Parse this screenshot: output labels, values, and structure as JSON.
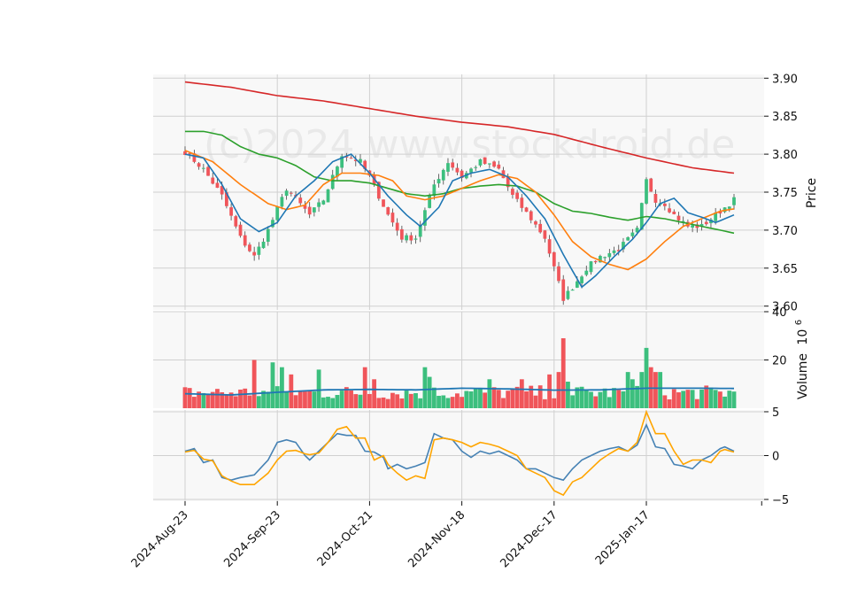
{
  "chart_data": {
    "type": "candlestick",
    "watermark": "(c)2024 www.stockdroid.de",
    "x_tick_labels": [
      "2024-Aug-23",
      "2024-Sep-23",
      "2024-Oct-21",
      "2024-Nov-18",
      "2024-Dec-17",
      "2025-Jan-17"
    ],
    "x_tick_index": [
      0,
      20,
      40,
      60,
      80,
      100
    ],
    "n_bars": 120,
    "colors": {
      "up": "#3cbf7e",
      "down": "#f0555a",
      "bg": "#f8f8f8",
      "grid": "#d0d0d0",
      "ma_fast": "#1f77b4",
      "ma_mid": "#ff7f0e",
      "ma_slow": "#2ca02c",
      "ma_long": "#d62728",
      "vol_ma": "#1f77b4",
      "osc_main": "#4682b4",
      "osc_signal": "#ffa500"
    },
    "price_panel": {
      "ylabel": "Price",
      "ylim": [
        3.595,
        3.905
      ],
      "y_ticks": [
        "3.60",
        "3.65",
        "3.70",
        "3.75",
        "3.80",
        "3.85",
        "3.90"
      ],
      "y_tick_values": [
        3.6,
        3.65,
        3.7,
        3.75,
        3.8,
        3.85,
        3.9
      ],
      "close_anchors": [
        [
          0,
          3.803
        ],
        [
          4,
          3.78
        ],
        [
          8,
          3.745
        ],
        [
          12,
          3.69
        ],
        [
          15,
          3.665
        ],
        [
          18,
          3.7
        ],
        [
          22,
          3.755
        ],
        [
          27,
          3.72
        ],
        [
          30,
          3.74
        ],
        [
          34,
          3.8
        ],
        [
          38,
          3.79
        ],
        [
          40,
          3.77
        ],
        [
          44,
          3.72
        ],
        [
          47,
          3.69
        ],
        [
          50,
          3.69
        ],
        [
          54,
          3.76
        ],
        [
          57,
          3.79
        ],
        [
          60,
          3.77
        ],
        [
          64,
          3.79
        ],
        [
          68,
          3.78
        ],
        [
          71,
          3.745
        ],
        [
          75,
          3.715
        ],
        [
          78,
          3.69
        ],
        [
          80,
          3.65
        ],
        [
          82,
          3.61
        ],
        [
          84,
          3.625
        ],
        [
          87,
          3.65
        ],
        [
          90,
          3.665
        ],
        [
          94,
          3.675
        ],
        [
          98,
          3.7
        ],
        [
          100,
          3.765
        ],
        [
          102,
          3.74
        ],
        [
          104,
          3.735
        ],
        [
          106,
          3.72
        ],
        [
          109,
          3.705
        ],
        [
          112,
          3.705
        ],
        [
          115,
          3.72
        ],
        [
          119,
          3.74
        ]
      ],
      "ma_fast_anchors": [
        [
          0,
          3.8
        ],
        [
          4,
          3.795
        ],
        [
          8,
          3.76
        ],
        [
          12,
          3.715
        ],
        [
          16,
          3.698
        ],
        [
          20,
          3.71
        ],
        [
          24,
          3.745
        ],
        [
          28,
          3.765
        ],
        [
          32,
          3.79
        ],
        [
          36,
          3.8
        ],
        [
          40,
          3.775
        ],
        [
          44,
          3.745
        ],
        [
          48,
          3.72
        ],
        [
          51,
          3.705
        ],
        [
          55,
          3.73
        ],
        [
          58,
          3.765
        ],
        [
          62,
          3.775
        ],
        [
          66,
          3.78
        ],
        [
          70,
          3.77
        ],
        [
          74,
          3.745
        ],
        [
          78,
          3.715
        ],
        [
          82,
          3.668
        ],
        [
          86,
          3.625
        ],
        [
          89,
          3.64
        ],
        [
          93,
          3.665
        ],
        [
          97,
          3.688
        ],
        [
          100,
          3.71
        ],
        [
          103,
          3.735
        ],
        [
          106,
          3.742
        ],
        [
          109,
          3.723
        ],
        [
          112,
          3.717
        ],
        [
          115,
          3.71
        ],
        [
          119,
          3.72
        ]
      ],
      "ma_mid_anchors": [
        [
          0,
          3.805
        ],
        [
          6,
          3.79
        ],
        [
          12,
          3.76
        ],
        [
          18,
          3.735
        ],
        [
          22,
          3.727
        ],
        [
          26,
          3.733
        ],
        [
          30,
          3.76
        ],
        [
          34,
          3.775
        ],
        [
          38,
          3.775
        ],
        [
          42,
          3.772
        ],
        [
          45,
          3.765
        ],
        [
          48,
          3.745
        ],
        [
          52,
          3.74
        ],
        [
          56,
          3.745
        ],
        [
          60,
          3.755
        ],
        [
          64,
          3.765
        ],
        [
          68,
          3.773
        ],
        [
          72,
          3.768
        ],
        [
          76,
          3.75
        ],
        [
          80,
          3.72
        ],
        [
          84,
          3.685
        ],
        [
          88,
          3.665
        ],
        [
          92,
          3.655
        ],
        [
          96,
          3.648
        ],
        [
          100,
          3.662
        ],
        [
          104,
          3.685
        ],
        [
          108,
          3.705
        ],
        [
          112,
          3.715
        ],
        [
          116,
          3.725
        ],
        [
          119,
          3.728
        ]
      ],
      "ma_slow_anchors": [
        [
          0,
          3.83
        ],
        [
          4,
          3.83
        ],
        [
          8,
          3.825
        ],
        [
          12,
          3.81
        ],
        [
          16,
          3.8
        ],
        [
          20,
          3.795
        ],
        [
          24,
          3.785
        ],
        [
          28,
          3.77
        ],
        [
          32,
          3.765
        ],
        [
          36,
          3.765
        ],
        [
          40,
          3.762
        ],
        [
          44,
          3.755
        ],
        [
          48,
          3.748
        ],
        [
          52,
          3.745
        ],
        [
          56,
          3.748
        ],
        [
          60,
          3.755
        ],
        [
          64,
          3.758
        ],
        [
          68,
          3.76
        ],
        [
          72,
          3.758
        ],
        [
          76,
          3.75
        ],
        [
          80,
          3.735
        ],
        [
          84,
          3.725
        ],
        [
          88,
          3.722
        ],
        [
          92,
          3.717
        ],
        [
          96,
          3.713
        ],
        [
          100,
          3.718
        ],
        [
          104,
          3.715
        ],
        [
          108,
          3.71
        ],
        [
          112,
          3.705
        ],
        [
          116,
          3.7
        ],
        [
          119,
          3.696
        ]
      ],
      "ma_long_anchors": [
        [
          0,
          3.895
        ],
        [
          10,
          3.888
        ],
        [
          20,
          3.877
        ],
        [
          30,
          3.87
        ],
        [
          40,
          3.86
        ],
        [
          50,
          3.85
        ],
        [
          60,
          3.842
        ],
        [
          70,
          3.836
        ],
        [
          80,
          3.826
        ],
        [
          90,
          3.81
        ],
        [
          100,
          3.795
        ],
        [
          110,
          3.782
        ],
        [
          119,
          3.775
        ]
      ]
    },
    "volume_panel": {
      "ylabel": "Volume",
      "ylabel_multiplier": "10",
      "ylabel_exponent": "6",
      "ylim": [
        0,
        40
      ],
      "y_ticks": [
        "20",
        "40"
      ],
      "y_tick_values": [
        20,
        40
      ],
      "spikes": [
        [
          15,
          20
        ],
        [
          19,
          19
        ],
        [
          21,
          17
        ],
        [
          23,
          14
        ],
        [
          29,
          16
        ],
        [
          39,
          17
        ],
        [
          41,
          12
        ],
        [
          52,
          17
        ],
        [
          53,
          13
        ],
        [
          66,
          12
        ],
        [
          73,
          12
        ],
        [
          79,
          14
        ],
        [
          81,
          15
        ],
        [
          82,
          29
        ],
        [
          83,
          11
        ],
        [
          96,
          15
        ],
        [
          97,
          12
        ],
        [
          99,
          15
        ],
        [
          100,
          25
        ],
        [
          101,
          17
        ],
        [
          102,
          15
        ],
        [
          103,
          15
        ]
      ],
      "ma_anchors": [
        [
          0,
          6
        ],
        [
          10,
          5.5
        ],
        [
          20,
          6.6
        ],
        [
          30,
          7.6
        ],
        [
          40,
          7.8
        ],
        [
          50,
          7.6
        ],
        [
          60,
          8.3
        ],
        [
          70,
          8
        ],
        [
          80,
          7.5
        ],
        [
          90,
          7.6
        ],
        [
          100,
          8.3
        ],
        [
          110,
          8.3
        ],
        [
          119,
          8.2
        ]
      ]
    },
    "oscillator_panel": {
      "ylim": [
        -5.2,
        5.2
      ],
      "y_ticks": [
        "5",
        "0",
        "−5"
      ],
      "y_tick_values": [
        5,
        0,
        -5
      ],
      "main_anchors": [
        [
          0,
          0.5
        ],
        [
          2,
          0.8
        ],
        [
          4,
          -0.8
        ],
        [
          6,
          -0.5
        ],
        [
          8,
          -2.5
        ],
        [
          10,
          -2.8
        ],
        [
          12,
          -2.5
        ],
        [
          15,
          -2.2
        ],
        [
          18,
          -0.5
        ],
        [
          20,
          1.5
        ],
        [
          22,
          1.8
        ],
        [
          24,
          1.5
        ],
        [
          26,
          0
        ],
        [
          27,
          -0.5
        ],
        [
          29,
          0.5
        ],
        [
          31,
          1.5
        ],
        [
          33,
          2.5
        ],
        [
          35,
          2.3
        ],
        [
          37,
          2.3
        ],
        [
          39,
          0.5
        ],
        [
          41,
          0.4
        ],
        [
          43,
          -0.2
        ],
        [
          44,
          -1.5
        ],
        [
          46,
          -1
        ],
        [
          48,
          -1.5
        ],
        [
          50,
          -1.2
        ],
        [
          52,
          -0.8
        ],
        [
          54,
          2.5
        ],
        [
          56,
          2
        ],
        [
          58,
          1.8
        ],
        [
          60,
          0.5
        ],
        [
          62,
          -0.2
        ],
        [
          64,
          0.5
        ],
        [
          66,
          0.2
        ],
        [
          68,
          0.5
        ],
        [
          70,
          0
        ],
        [
          72,
          -0.5
        ],
        [
          74,
          -1.5
        ],
        [
          76,
          -1.5
        ],
        [
          78,
          -2
        ],
        [
          80,
          -2.5
        ],
        [
          82,
          -2.8
        ],
        [
          84,
          -1.5
        ],
        [
          86,
          -0.5
        ],
        [
          88,
          0
        ],
        [
          90,
          0.5
        ],
        [
          92,
          0.8
        ],
        [
          94,
          1
        ],
        [
          96,
          0.5
        ],
        [
          98,
          1.2
        ],
        [
          100,
          3.5
        ],
        [
          102,
          1
        ],
        [
          104,
          0.8
        ],
        [
          106,
          -1
        ],
        [
          108,
          -1.2
        ],
        [
          110,
          -1.5
        ],
        [
          112,
          -0.5
        ],
        [
          114,
          0
        ],
        [
          116,
          0.8
        ],
        [
          117,
          1
        ],
        [
          119,
          0.5
        ]
      ],
      "signal_anchors": [
        [
          0,
          0.4
        ],
        [
          2,
          0.6
        ],
        [
          4,
          -0.4
        ],
        [
          6,
          -0.6
        ],
        [
          8,
          -2.3
        ],
        [
          10,
          -2.9
        ],
        [
          12,
          -3.3
        ],
        [
          15,
          -3.3
        ],
        [
          18,
          -2
        ],
        [
          20,
          -0.5
        ],
        [
          22,
          0.5
        ],
        [
          24,
          0.6
        ],
        [
          26,
          0.2
        ],
        [
          27,
          0.1
        ],
        [
          29,
          0.3
        ],
        [
          31,
          1.5
        ],
        [
          33,
          3
        ],
        [
          35,
          3.3
        ],
        [
          37,
          2
        ],
        [
          39,
          2
        ],
        [
          41,
          -0.5
        ],
        [
          43,
          0
        ],
        [
          44,
          -1
        ],
        [
          46,
          -2
        ],
        [
          48,
          -2.8
        ],
        [
          50,
          -2.3
        ],
        [
          52,
          -2.6
        ],
        [
          54,
          1.8
        ],
        [
          56,
          2
        ],
        [
          58,
          1.8
        ],
        [
          60,
          1.5
        ],
        [
          62,
          1
        ],
        [
          64,
          1.5
        ],
        [
          66,
          1.3
        ],
        [
          68,
          1
        ],
        [
          70,
          0.5
        ],
        [
          72,
          0
        ],
        [
          74,
          -1.5
        ],
        [
          76,
          -2
        ],
        [
          78,
          -2.5
        ],
        [
          80,
          -4
        ],
        [
          82,
          -4.5
        ],
        [
          84,
          -3
        ],
        [
          86,
          -2.5
        ],
        [
          88,
          -1.5
        ],
        [
          90,
          -0.5
        ],
        [
          92,
          0.2
        ],
        [
          94,
          0.8
        ],
        [
          96,
          0.5
        ],
        [
          98,
          1.5
        ],
        [
          100,
          5
        ],
        [
          102,
          2.5
        ],
        [
          104,
          2.5
        ],
        [
          106,
          0.5
        ],
        [
          108,
          -1
        ],
        [
          110,
          -0.5
        ],
        [
          112,
          -0.5
        ],
        [
          114,
          -0.8
        ],
        [
          116,
          0.5
        ],
        [
          117,
          0.7
        ],
        [
          119,
          0.4
        ]
      ]
    }
  }
}
